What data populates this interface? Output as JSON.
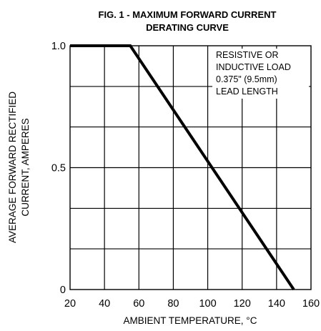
{
  "chart_data": {
    "type": "line",
    "title": [
      "FIG. 1 - MAXIMUM FORWARD CURRENT",
      "DERATING CURVE"
    ],
    "xlabel": "AMBIENT TEMPERATURE, °C",
    "ylabel": [
      "AVERAGE FORWARD RECTIFIED",
      "CURRENT, AMPERES"
    ],
    "xlim": [
      20,
      160
    ],
    "ylim": [
      0,
      1.0
    ],
    "x_ticks": [
      20,
      40,
      60,
      80,
      100,
      120,
      140,
      160
    ],
    "x_tick_labels": [
      "20",
      "40",
      "60",
      "80",
      "100",
      "120",
      "140",
      "160"
    ],
    "y_gridlines": [
      0,
      0.167,
      0.333,
      0.5,
      0.667,
      0.833,
      1.0
    ],
    "y_tick_values": [
      0,
      0.5,
      1.0
    ],
    "y_tick_labels": [
      "0",
      "0.5",
      "1.0"
    ],
    "grid": true,
    "annotation": [
      "RESISTIVE OR",
      "INDUCTIVE LOAD",
      "0.375\" (9.5mm)",
      "LEAD LENGTH"
    ],
    "series": [
      {
        "x": [
          20,
          55,
          150
        ],
        "y": [
          1.0,
          1.0,
          0
        ]
      }
    ]
  }
}
